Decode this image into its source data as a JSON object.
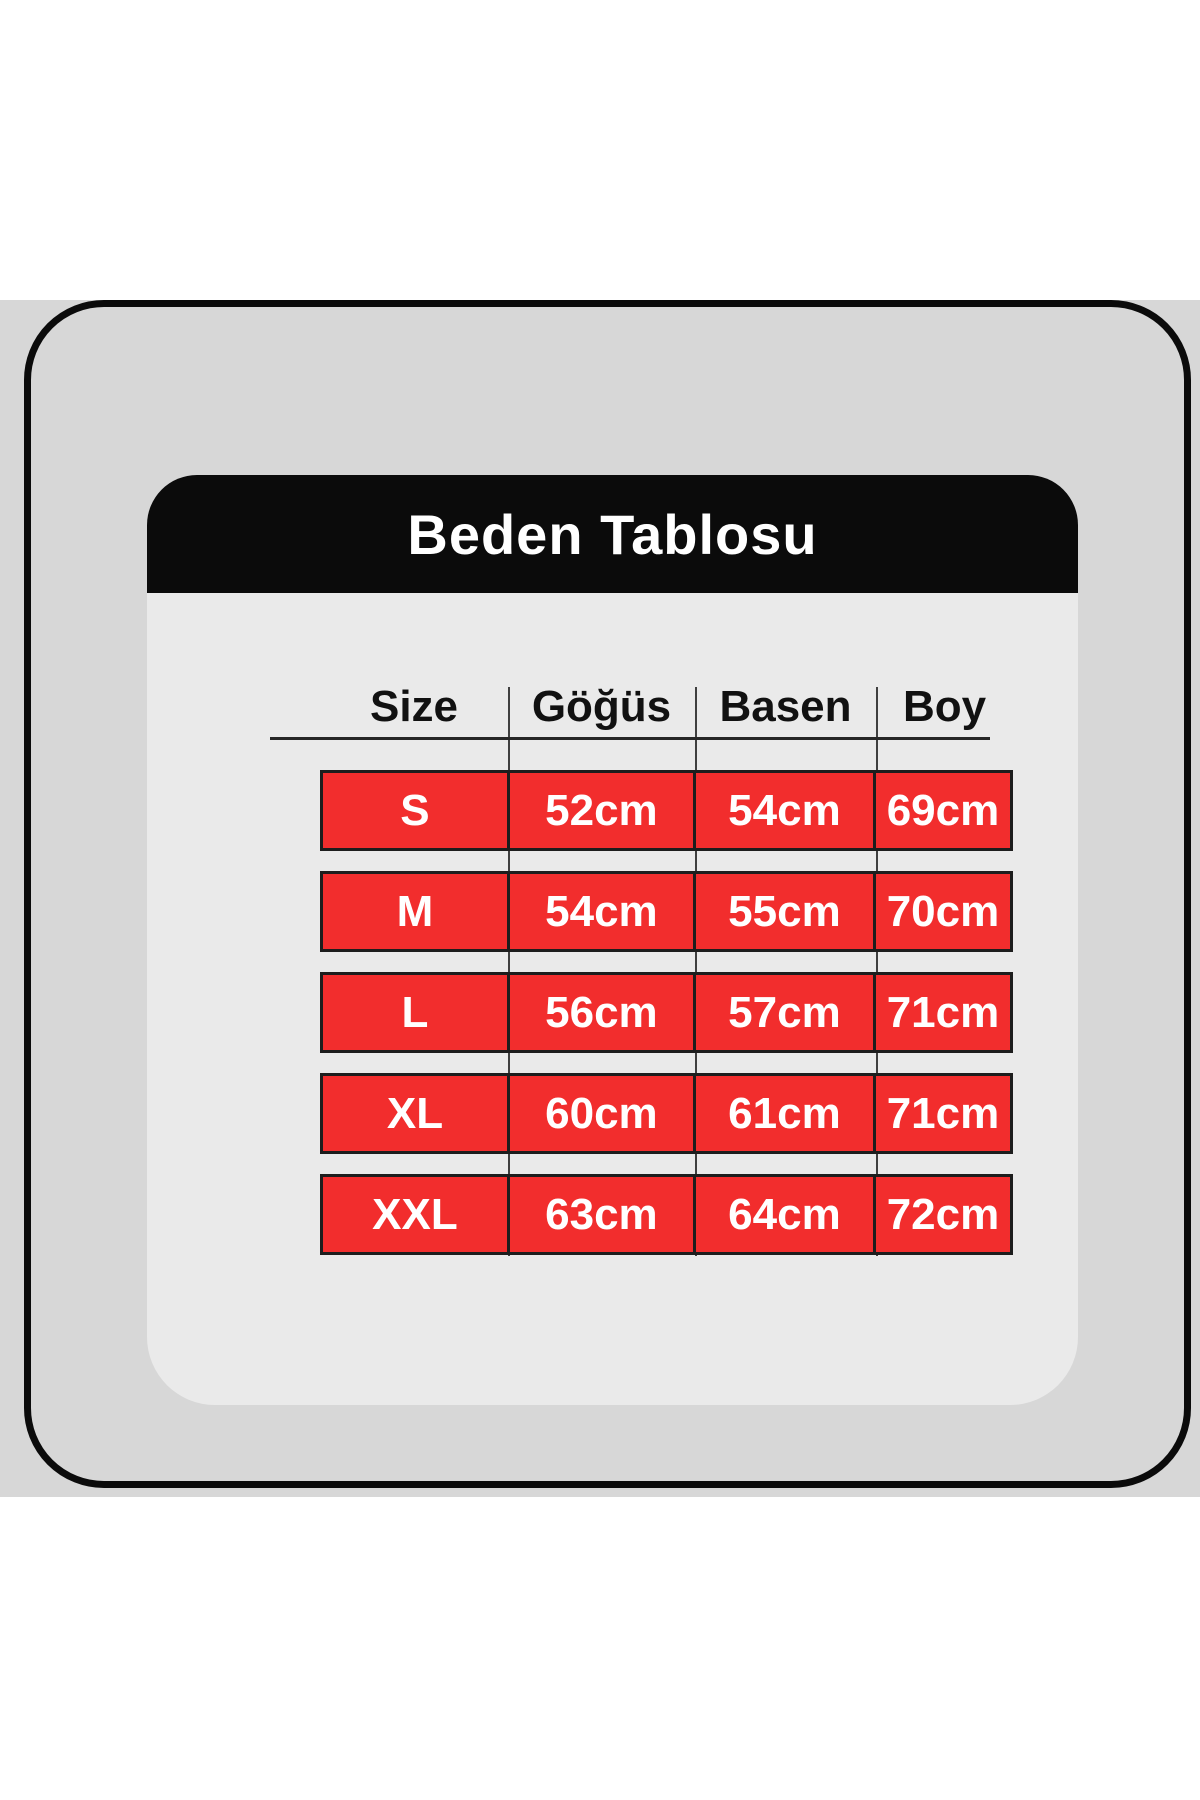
{
  "title": "Beden Tablosu",
  "table": {
    "columns": [
      "Size",
      "Göğüs",
      "Basen",
      "Boy"
    ],
    "rows": [
      [
        "S",
        "52cm",
        "54cm",
        "69cm"
      ],
      [
        "M",
        "54cm",
        "55cm",
        "70cm"
      ],
      [
        "L",
        "56cm",
        "57cm",
        "71cm"
      ],
      [
        "XL",
        "60cm",
        "61cm",
        "71cm"
      ],
      [
        "XXL",
        "63cm",
        "64cm",
        "72cm"
      ]
    ]
  },
  "colors": {
    "accent_red": "#f22d2d",
    "frame_black": "#0b0b0b",
    "card_gray": "#eaeaea",
    "background_gray": "#d7d7d7",
    "value_text": "#ffffff",
    "header_text": "#111111"
  }
}
